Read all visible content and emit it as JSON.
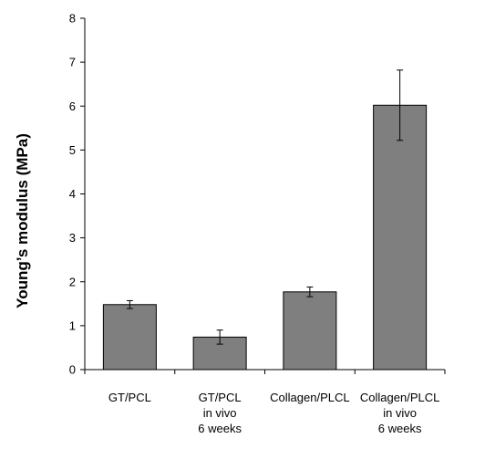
{
  "chart_data": {
    "type": "bar",
    "title": "",
    "xlabel": "",
    "ylabel": "Young’s modulus (MPa)",
    "ylim": [
      0,
      8
    ],
    "yticks": [
      0,
      1,
      2,
      3,
      4,
      5,
      6,
      7,
      8
    ],
    "grid": false,
    "legend": "none",
    "bar_color": "#7f7f7f",
    "categories": [
      [
        "GT/PCL"
      ],
      [
        "GT/PCL",
        "in vivo",
        "6 weeks"
      ],
      [
        "Collagen/PLCL"
      ],
      [
        "Collagen/PLCL",
        "in vivo",
        "6 weeks"
      ]
    ],
    "values": [
      1.48,
      0.74,
      1.77,
      6.02
    ],
    "errors": [
      0.09,
      0.16,
      0.11,
      0.8
    ]
  }
}
